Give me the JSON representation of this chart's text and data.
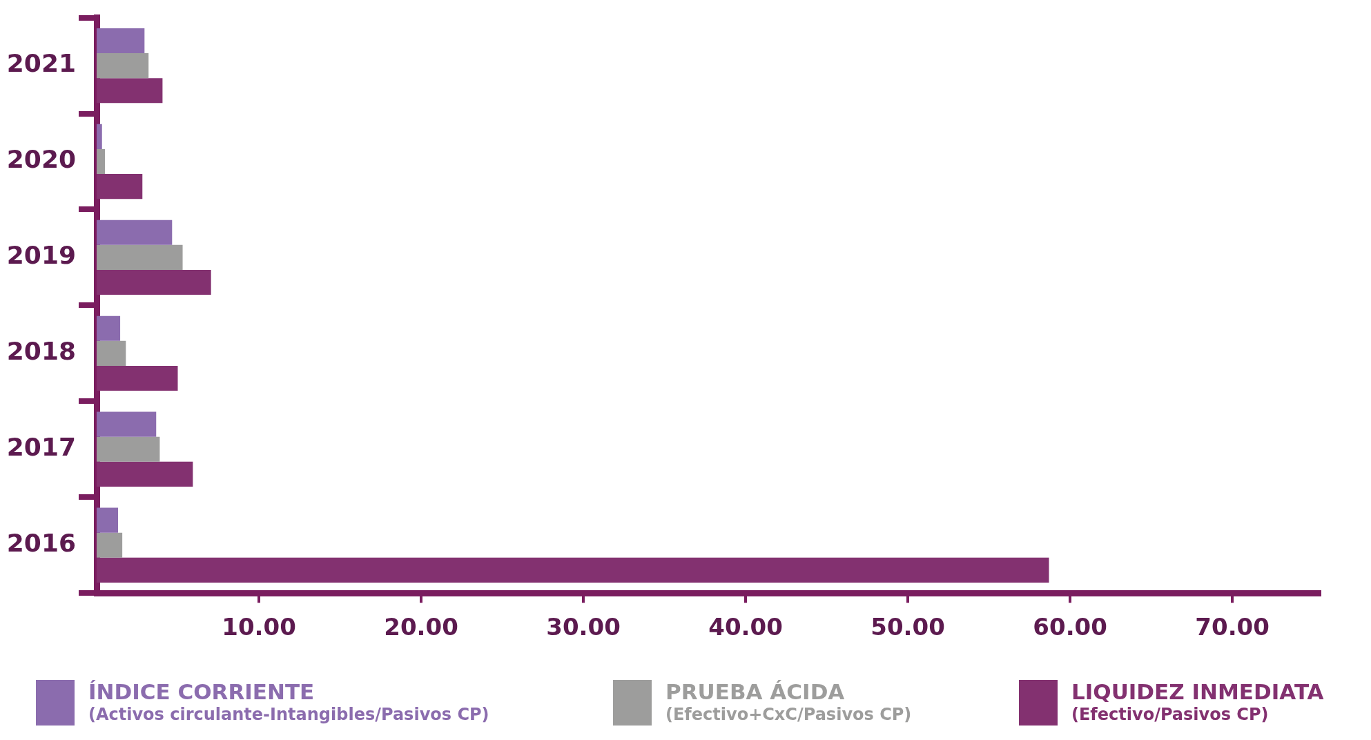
{
  "chart_data": {
    "type": "bar",
    "orientation": "horizontal",
    "categories": [
      "2021",
      "2020",
      "2019",
      "2018",
      "2017",
      "2016"
    ],
    "series": [
      {
        "name": "ÍNDICE CORRIENTE\n(Activos circulante-Intangibles/Pasivos CP)",
        "color": "#8b6cae",
        "values": [
          2.95,
          0.33,
          4.65,
          1.45,
          3.67,
          1.32
        ]
      },
      {
        "name": "PRUEBA ÁCIDA\n(Efectivo+CxC/Pasivos CP)",
        "color": "#9d9d9c",
        "values": [
          3.2,
          0.51,
          5.3,
          1.8,
          3.89,
          1.58
        ]
      },
      {
        "name": "LIQUIDEZ INMEDIATA\n(Efectivo/Pasivos CP)",
        "color": "#833170",
        "values": [
          4.06,
          2.82,
          7.05,
          5.0,
          5.93,
          58.7
        ]
      }
    ],
    "xlim": [
      0,
      75.4
    ],
    "xticks": [
      {
        "value": 10,
        "label": "10.00"
      },
      {
        "value": 20,
        "label": "20.00"
      },
      {
        "value": 30,
        "label": "30.00"
      },
      {
        "value": 40,
        "label": "40.00"
      },
      {
        "value": 50,
        "label": "50.00"
      },
      {
        "value": 60,
        "label": "60.00"
      },
      {
        "value": 70,
        "label": "70.00"
      }
    ],
    "grid": false,
    "legend": "bottom"
  }
}
